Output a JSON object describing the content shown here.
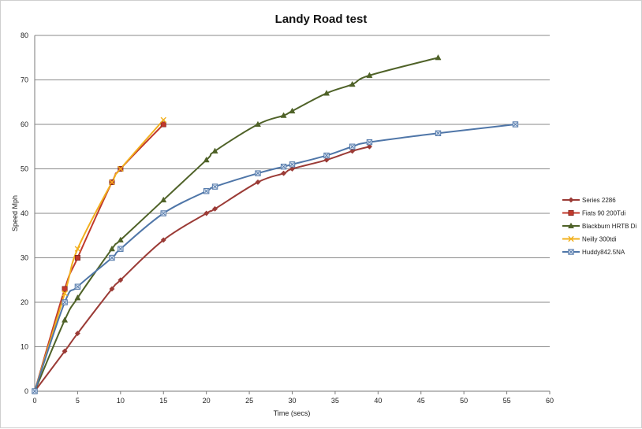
{
  "chart_data": {
    "type": "line",
    "title": "Landy Road test",
    "xlabel": "Time (secs)",
    "ylabel": "Speed Mph",
    "xlim": [
      0,
      60
    ],
    "ylim": [
      0,
      80
    ],
    "x_ticks": [
      0,
      5,
      10,
      15,
      20,
      25,
      30,
      35,
      40,
      45,
      50,
      55,
      60
    ],
    "y_ticks": [
      0,
      10,
      20,
      30,
      40,
      50,
      60,
      70,
      80
    ],
    "grid": "horizontal",
    "legend_position": "right",
    "series": [
      {
        "name": "Series 2286",
        "color": "#9B3B36",
        "marker": "diamond",
        "points": [
          [
            0,
            0
          ],
          [
            3.5,
            9
          ],
          [
            5,
            13
          ],
          [
            9,
            23
          ],
          [
            10,
            25
          ],
          [
            15,
            34
          ],
          [
            20,
            40
          ],
          [
            21,
            41
          ],
          [
            26,
            47
          ],
          [
            29,
            49
          ],
          [
            30,
            50
          ],
          [
            34,
            52
          ],
          [
            37,
            54
          ],
          [
            39,
            55
          ]
        ]
      },
      {
        "name": "Fiats 90  200Tdi",
        "color": "#C0392B",
        "marker": "square",
        "points": [
          [
            0,
            0
          ],
          [
            3.5,
            23
          ],
          [
            5,
            30
          ],
          [
            9,
            47
          ],
          [
            10,
            50
          ],
          [
            15,
            60
          ]
        ]
      },
      {
        "name": "Blackburn HRTB Di",
        "color": "#4F6228",
        "marker": "triangle",
        "points": [
          [
            0,
            0
          ],
          [
            3.5,
            16
          ],
          [
            5,
            21
          ],
          [
            9,
            32
          ],
          [
            10,
            34
          ],
          [
            15,
            43
          ],
          [
            20,
            52
          ],
          [
            21,
            54
          ],
          [
            26,
            60
          ],
          [
            29,
            62
          ],
          [
            30,
            63
          ],
          [
            34,
            67
          ],
          [
            37,
            69
          ],
          [
            39,
            71
          ],
          [
            47,
            75
          ]
        ]
      },
      {
        "name": "Neilly 300tdi",
        "color": "#F2B01E",
        "marker": "x",
        "points": [
          [
            0,
            0
          ],
          [
            3.5,
            22
          ],
          [
            5,
            32
          ],
          [
            9,
            47
          ],
          [
            10,
            50
          ],
          [
            15,
            61
          ]
        ]
      },
      {
        "name": "Huddy842.5NA",
        "color": "#4F76A8",
        "marker": "square-x",
        "points": [
          [
            0,
            0
          ],
          [
            3.5,
            20
          ],
          [
            5,
            23.5
          ],
          [
            9,
            30
          ],
          [
            10,
            32
          ],
          [
            15,
            40
          ],
          [
            20,
            45
          ],
          [
            21,
            46
          ],
          [
            26,
            49
          ],
          [
            29,
            50.5
          ],
          [
            30,
            51
          ],
          [
            34,
            53
          ],
          [
            37,
            55
          ],
          [
            39,
            56
          ],
          [
            47,
            58
          ],
          [
            56,
            60
          ]
        ]
      }
    ]
  }
}
